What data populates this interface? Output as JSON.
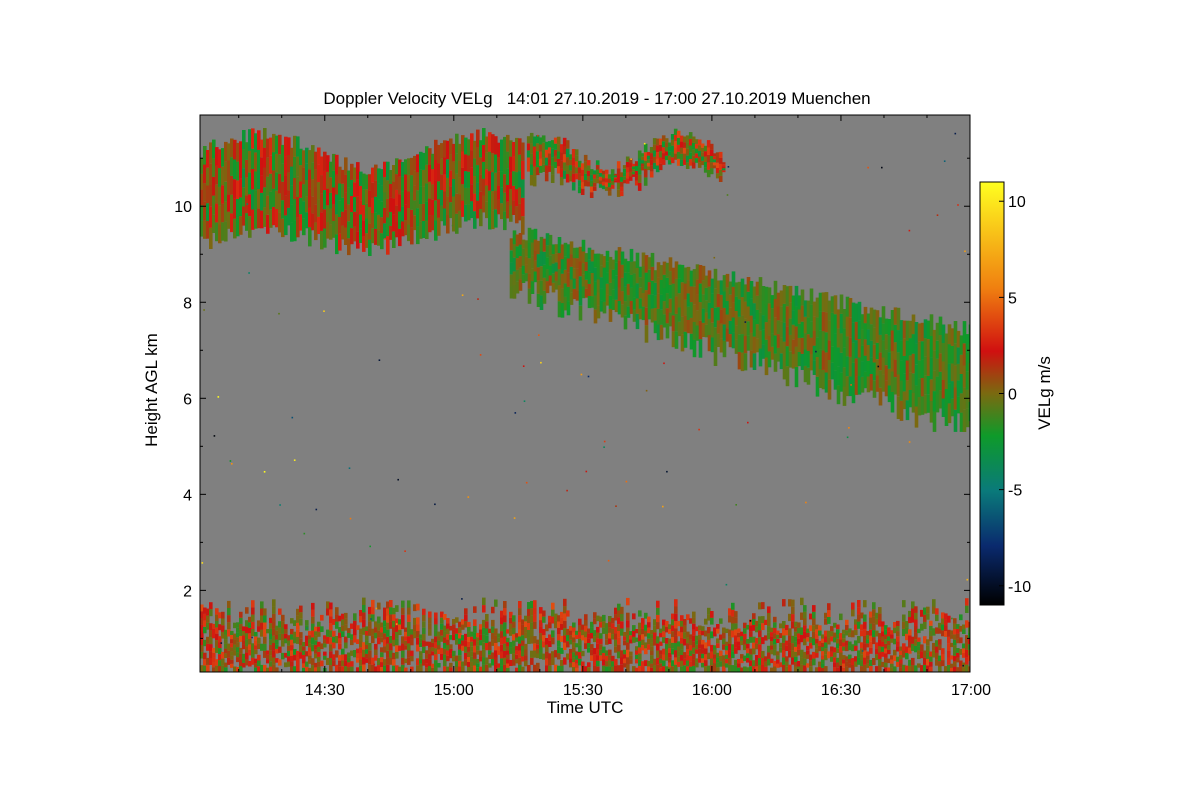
{
  "chart_data": {
    "type": "heatmap",
    "title": "Doppler Velocity VELg   14:01 27.10.2019 - 17:00 27.10.2019 Muenchen",
    "xlabel": "Time UTC",
    "ylabel": "Height AGL km",
    "xlim": [
      "14:01",
      "17:00"
    ],
    "ylim": [
      0.3,
      11.9
    ],
    "x_ticks": [
      "14:30",
      "15:00",
      "15:30",
      "16:00",
      "16:30",
      "17:00"
    ],
    "y_ticks": [
      2,
      4,
      6,
      8,
      10
    ],
    "colorbar": {
      "label": "VELg m/s",
      "range": [
        -11,
        11
      ],
      "ticks": [
        10,
        5,
        0,
        -5,
        -10
      ],
      "colors": [
        "#000000",
        "#0a2a6e",
        "#0a7a7a",
        "#0e9a2a",
        "#7a6a10",
        "#d01010",
        "#f08010",
        "#ffff20"
      ]
    },
    "background_color": "#808080",
    "features": [
      {
        "name": "upper cirrus layer",
        "time_range": [
          "14:01",
          "15:16"
        ],
        "height_range_km": [
          8.7,
          11.4
        ],
        "velocity_m_s": [
          -3,
          3
        ]
      },
      {
        "name": "upper cloud fragment",
        "time_range": [
          "15:17",
          "16:03"
        ],
        "height_range_km": [
          9.9,
          11.4
        ],
        "velocity_m_s": [
          -3,
          4
        ]
      },
      {
        "name": "descending cloud layer",
        "time_range": [
          "15:13",
          "17:00"
        ],
        "height_range_km": [
          5.3,
          9.5
        ],
        "velocity_m_s": [
          -3,
          1
        ]
      },
      {
        "name": "boundary layer aerosol",
        "time_range": [
          "14:01",
          "17:00"
        ],
        "height_range_km": [
          0.3,
          1.9
        ],
        "velocity_m_s": [
          -2,
          4
        ]
      }
    ]
  }
}
